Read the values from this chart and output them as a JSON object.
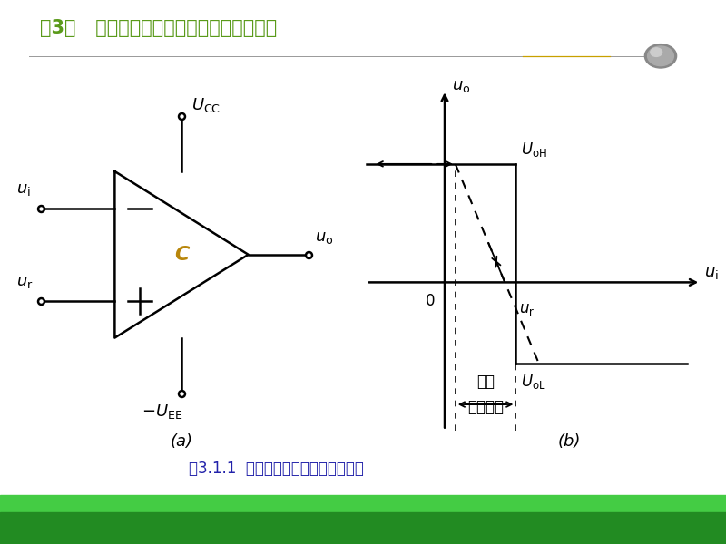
{
  "title": "第3章   电压比较器、弛张振荡器及模拟开关",
  "caption": "图3.1.1  电压比较器的符号及传输特性",
  "label_a": "(a)",
  "label_b": "(b)",
  "bg_color": "#ffffff",
  "title_color": "#5a9a1a",
  "caption_color": "#2222aa",
  "header_line_color": "#c8a000",
  "bottom_bar_color1": "#228b22",
  "bottom_bar_color2": "#44cc44",
  "C_color": "#b8860b"
}
